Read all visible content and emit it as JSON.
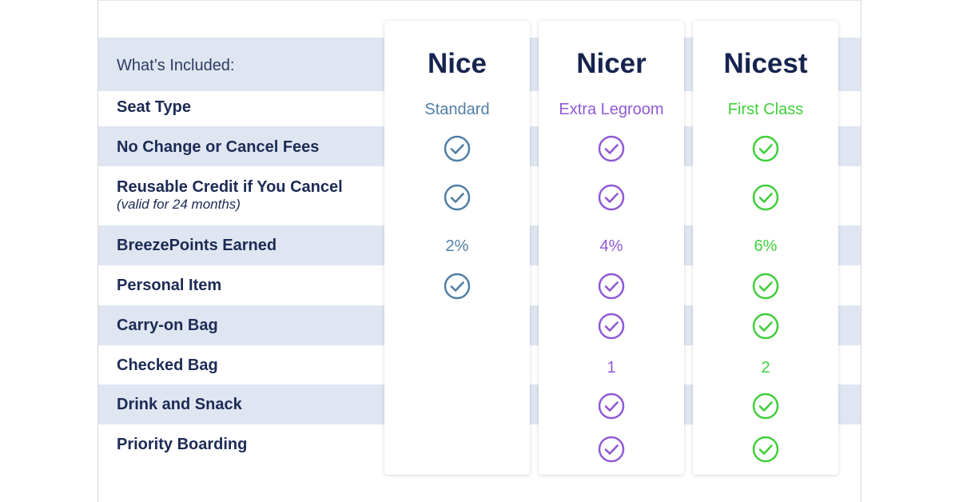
{
  "header_label": "What’s Included:",
  "plans": [
    {
      "name": "Nice",
      "color": "#4f7fa6"
    },
    {
      "name": "Nicer",
      "color": "#9159d6"
    },
    {
      "name": "Nicest",
      "color": "#3fcf3a"
    }
  ],
  "rows": [
    {
      "label": "Seat Type",
      "values": [
        "Standard",
        "Extra Legroom",
        "First Class"
      ]
    },
    {
      "label": "No Change or Cancel Fees",
      "values": [
        "check",
        "check",
        "check"
      ]
    },
    {
      "label": "Reusable Credit if You Cancel",
      "sublabel": "(valid for 24 months)",
      "values": [
        "check",
        "check",
        "check"
      ]
    },
    {
      "label": "BreezePoints Earned",
      "values": [
        "2%",
        "4%",
        "6%"
      ]
    },
    {
      "label": "Personal Item",
      "values": [
        "check",
        "check",
        "check"
      ]
    },
    {
      "label": "Carry-on Bag",
      "values": [
        "",
        "check",
        "check"
      ]
    },
    {
      "label": "Checked Bag",
      "values": [
        "",
        "1",
        "2"
      ]
    },
    {
      "label": "Drink and Snack",
      "values": [
        "",
        "check",
        "check"
      ]
    },
    {
      "label": "Priority Boarding",
      "values": [
        "",
        "check",
        "check"
      ]
    }
  ],
  "icons": {
    "included": "check-circle-icon"
  },
  "colors": {
    "band": "#dfe6f1",
    "label": "#1c2b55"
  }
}
